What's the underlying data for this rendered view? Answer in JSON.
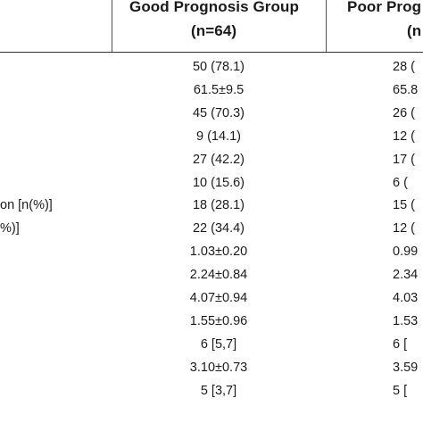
{
  "header": {
    "good_title": "Good Prognosis Group",
    "good_n": "(n=64)",
    "poor_title": "Poor Prog",
    "poor_n": "(n"
  },
  "labels": [
    {
      "row": 6,
      "text": "on [n(%)]"
    },
    {
      "row": 7,
      "text": "%)]"
    }
  ],
  "rows": [
    {
      "good": "50 (78.1)",
      "poor": "28 ("
    },
    {
      "good": "61.5±9.5",
      "poor": "65.8"
    },
    {
      "good": "45 (70.3)",
      "poor": "26 ("
    },
    {
      "good": "9 (14.1)",
      "poor": "12 ("
    },
    {
      "good": "27 (42.2)",
      "poor": "17 ("
    },
    {
      "good": "10 (15.6)",
      "poor": "6 ("
    },
    {
      "good": "18 (28.1)",
      "poor": "15 ("
    },
    {
      "good": "22 (34.4)",
      "poor": "12 ("
    },
    {
      "good": "1.03±0.20",
      "poor": "0.99"
    },
    {
      "good": "2.24±0.84",
      "poor": "2.34"
    },
    {
      "good": "4.07±0.94",
      "poor": "4.03"
    },
    {
      "good": "1.55±0.96",
      "poor": "1.53"
    },
    {
      "good": "6 [5,7]",
      "poor": "6 ["
    },
    {
      "good": "3.10±0.73",
      "poor": "3.59"
    },
    {
      "good": "5 [3,7]",
      "poor": "5 ["
    }
  ]
}
